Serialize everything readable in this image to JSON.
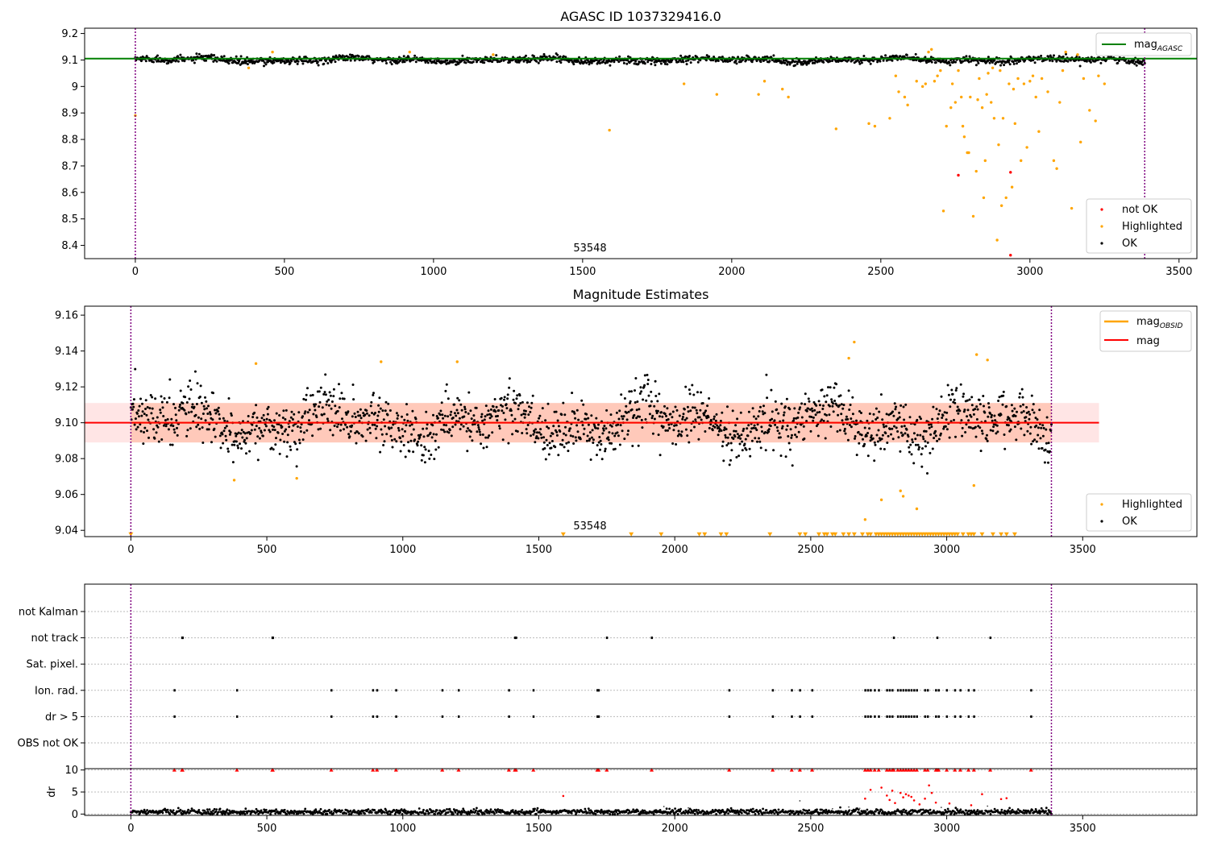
{
  "chart_data": [
    {
      "id": "agasc_panel",
      "type": "scatter",
      "title": "AGASC ID 1037329416.0",
      "xlim": [
        -170,
        3560
      ],
      "ylim": [
        8.35,
        9.22
      ],
      "xticks": [
        0,
        500,
        1000,
        1500,
        2000,
        2500,
        3000,
        3500
      ],
      "yticks": [
        8.4,
        8.5,
        8.6,
        8.7,
        8.8,
        8.9,
        9.0,
        9.1,
        9.2
      ],
      "obsid_label": "53548",
      "obsid_label_pos": [
        1695,
        8.37
      ],
      "boundaries": [
        0,
        3385
      ],
      "line": {
        "name": "mag",
        "name_sub": "AGASC",
        "y": 9.105,
        "x": [
          -170,
          3560
        ],
        "color": "#008000"
      },
      "ok_band": {
        "y_center": 9.1,
        "amplitude": 0.012,
        "x": [
          0,
          3385
        ],
        "count": 1500
      },
      "series": [
        {
          "name": "not OK",
          "color": "#ff0000",
          "points": [
            [
              2760,
              8.665
            ],
            [
              2935,
              8.676
            ],
            [
              2935,
              8.363
            ]
          ]
        },
        {
          "name": "Highlighted",
          "color": "#ffa500",
          "points": [
            [
              0,
              8.89
            ],
            [
              380,
              9.07
            ],
            [
              460,
              9.13
            ],
            [
              920,
              9.13
            ],
            [
              1200,
              9.12
            ],
            [
              1590,
              8.835
            ],
            [
              1840,
              9.01
            ],
            [
              1950,
              8.97
            ],
            [
              2090,
              8.97
            ],
            [
              2110,
              9.02
            ],
            [
              2170,
              8.99
            ],
            [
              2190,
              8.96
            ],
            [
              2350,
              8.84
            ],
            [
              2460,
              8.86
            ],
            [
              2480,
              8.85
            ],
            [
              2530,
              8.88
            ],
            [
              2550,
              9.04
            ],
            [
              2560,
              8.98
            ],
            [
              2580,
              8.96
            ],
            [
              2590,
              8.93
            ],
            [
              2620,
              9.02
            ],
            [
              2640,
              9.0
            ],
            [
              2650,
              9.01
            ],
            [
              2660,
              9.13
            ],
            [
              2670,
              9.14
            ],
            [
              2680,
              9.02
            ],
            [
              2690,
              9.04
            ],
            [
              2700,
              9.06
            ],
            [
              2710,
              8.53
            ],
            [
              2720,
              8.85
            ],
            [
              2740,
              9.01
            ],
            [
              2750,
              8.94
            ],
            [
              2760,
              9.06
            ],
            [
              2770,
              8.96
            ],
            [
              2780,
              8.81
            ],
            [
              2790,
              8.75
            ],
            [
              2800,
              8.96
            ],
            [
              2810,
              8.51
            ],
            [
              2820,
              8.68
            ],
            [
              2830,
              9.03
            ],
            [
              2840,
              8.92
            ],
            [
              2850,
              8.72
            ],
            [
              2860,
              9.05
            ],
            [
              2870,
              8.94
            ],
            [
              2880,
              8.88
            ],
            [
              2890,
              8.42
            ],
            [
              2900,
              9.06
            ],
            [
              2910,
              8.88
            ],
            [
              2920,
              8.58
            ],
            [
              2930,
              9.01
            ],
            [
              2940,
              8.62
            ],
            [
              2950,
              8.86
            ],
            [
              2960,
              9.03
            ],
            [
              2970,
              8.72
            ],
            [
              2980,
              9.01
            ],
            [
              2990,
              8.77
            ],
            [
              3000,
              9.02
            ],
            [
              3010,
              9.04
            ],
            [
              3020,
              8.96
            ],
            [
              3030,
              8.83
            ],
            [
              3040,
              9.03
            ],
            [
              3060,
              8.98
            ],
            [
              3080,
              8.72
            ],
            [
              3090,
              8.69
            ],
            [
              3100,
              8.94
            ],
            [
              3110,
              9.06
            ],
            [
              3120,
              9.13
            ],
            [
              3140,
              8.54
            ],
            [
              3160,
              9.12
            ],
            [
              3170,
              8.79
            ],
            [
              3180,
              9.03
            ],
            [
              3200,
              8.91
            ],
            [
              3220,
              8.87
            ],
            [
              3230,
              9.04
            ],
            [
              3250,
              9.01
            ],
            [
              2825,
              8.95
            ],
            [
              2855,
              8.97
            ],
            [
              2875,
              9.07
            ],
            [
              2895,
              8.78
            ],
            [
              2905,
              8.55
            ],
            [
              2945,
              8.99
            ],
            [
              2845,
              8.58
            ],
            [
              2795,
              8.75
            ],
            [
              2735,
              8.92
            ],
            [
              2775,
              8.85
            ]
          ]
        },
        {
          "name": "OK",
          "color": "#000000",
          "points": []
        }
      ],
      "legends": [
        {
          "position": "upper right",
          "entries": [
            {
              "label": "mag",
              "sub": "AGASC",
              "kind": "line",
              "color": "#008000"
            }
          ]
        },
        {
          "position": "lower right",
          "entries": [
            {
              "label": "not OK",
              "kind": "marker",
              "color": "#ff0000"
            },
            {
              "label": "Highlighted",
              "kind": "marker",
              "color": "#ffa500"
            },
            {
              "label": "OK",
              "kind": "marker",
              "color": "#000000"
            }
          ]
        }
      ]
    },
    {
      "id": "mag_panel",
      "type": "scatter",
      "title": "Magnitude Estimates",
      "xlim": [
        -170,
        3920
      ],
      "ylim": [
        9.0365,
        9.165
      ],
      "xticks": [
        0,
        500,
        1000,
        1500,
        2000,
        2500,
        3000,
        3500
      ],
      "yticks": [
        9.04,
        9.06,
        9.08,
        9.1,
        9.12,
        9.14,
        9.16
      ],
      "ytick_labels": [
        "9.04",
        "9.06",
        "9.08",
        "9.10",
        "9.12",
        "9.14",
        "9.16"
      ],
      "obsid_label": "53548",
      "obsid_label_pos": [
        1695,
        9.0375
      ],
      "boundaries": [
        0,
        3385
      ],
      "obsid_band": {
        "y_low": 9.089,
        "y_high": 9.111,
        "x": [
          0,
          3385
        ],
        "color": "#ffa07a",
        "alpha": 0.4
      },
      "mag_band": {
        "y_low": 9.089,
        "y_high": 9.111,
        "x": [
          -170,
          3560
        ],
        "color": "#ff9999",
        "alpha": 0.25
      },
      "lines": [
        {
          "name": "mag",
          "name_sub": "OBSID",
          "y": 9.1,
          "x": [
            0,
            3385
          ],
          "color": "#ffa500"
        },
        {
          "name": "mag",
          "y": 9.1,
          "x": [
            -170,
            3560
          ],
          "color": "#ff0000"
        }
      ],
      "ok_band": {
        "y_center": 9.1,
        "amplitude": 0.013,
        "x": [
          0,
          3385
        ],
        "count": 1700
      },
      "series": [
        {
          "name": "Highlighted",
          "color": "#ffa500",
          "points": [
            [
              380,
              9.068
            ],
            [
              460,
              9.133
            ],
            [
              610,
              9.069
            ],
            [
              920,
              9.134
            ],
            [
              1200,
              9.134
            ],
            [
              2660,
              9.145
            ],
            [
              2640,
              9.136
            ],
            [
              2700,
              9.046
            ],
            [
              2760,
              9.057
            ],
            [
              2830,
              9.062
            ],
            [
              2840,
              9.059
            ],
            [
              2890,
              9.052
            ],
            [
              3100,
              9.065
            ],
            [
              3110,
              9.138
            ],
            [
              3150,
              9.135
            ]
          ]
        },
        {
          "name": "OK",
          "color": "#000000",
          "points": []
        }
      ],
      "triangles_y": 9.0375,
      "triangles_x": [
        0,
        1590,
        1840,
        1950,
        2090,
        2110,
        2170,
        2190,
        2350,
        2460,
        2480,
        2530,
        2550,
        2560,
        2580,
        2590,
        2620,
        2640,
        2660,
        2690,
        2710,
        2720,
        2740,
        2750,
        2760,
        2770,
        2780,
        2790,
        2800,
        2810,
        2820,
        2830,
        2840,
        2850,
        2860,
        2870,
        2880,
        2890,
        2900,
        2910,
        2920,
        2930,
        2940,
        2950,
        2960,
        2970,
        2980,
        2990,
        3000,
        3010,
        3020,
        3030,
        3040,
        3060,
        3080,
        3090,
        3100,
        3130,
        3170,
        3200,
        3220,
        3250
      ],
      "legends": [
        {
          "position": "upper right",
          "entries": [
            {
              "label": "mag",
              "sub": "OBSID",
              "kind": "line",
              "color": "#ffa500"
            },
            {
              "label": "mag",
              "kind": "line",
              "color": "#ff0000"
            }
          ]
        },
        {
          "position": "lower right",
          "entries": [
            {
              "label": "Highlighted",
              "kind": "marker",
              "color": "#ffa500"
            },
            {
              "label": "OK",
              "kind": "marker",
              "color": "#000000"
            }
          ]
        }
      ]
    },
    {
      "id": "flags_panel",
      "type": "scatter",
      "title": "",
      "xlim": [
        -170,
        3920
      ],
      "boundaries": [
        0,
        3385
      ],
      "rows": [
        {
          "label": "not Kalman",
          "points": []
        },
        {
          "label": "not track",
          "points": [
            188,
            190,
            520,
            522,
            1412,
            1416,
            1750,
            1915,
            2805,
            2965,
            3160
          ]
        },
        {
          "label": "Sat. pixel.",
          "points": []
        },
        {
          "label": "Ion. rad.",
          "points": [
            160,
            390,
            737,
            890,
            905,
            975,
            1145,
            1205,
            1390,
            1480,
            1715,
            1720,
            2200,
            2360,
            2430,
            2460,
            2505,
            2700,
            2710,
            2720,
            2735,
            2750,
            2780,
            2790,
            2800,
            2820,
            2830,
            2840,
            2850,
            2860,
            2870,
            2880,
            2890,
            2920,
            2930,
            2960,
            2970,
            3000,
            3030,
            3050,
            3080,
            3100,
            3310
          ]
        },
        {
          "label": "dr > 5",
          "points": [
            160,
            390,
            737,
            890,
            905,
            975,
            1145,
            1205,
            1390,
            1480,
            1715,
            1720,
            2200,
            2360,
            2430,
            2460,
            2505,
            2700,
            2710,
            2720,
            2735,
            2750,
            2780,
            2790,
            2800,
            2820,
            2830,
            2840,
            2850,
            2860,
            2870,
            2880,
            2890,
            2920,
            2930,
            2960,
            2970,
            3000,
            3030,
            3050,
            3080,
            3100,
            3310
          ]
        },
        {
          "label": "OBS not OK",
          "points": []
        }
      ]
    },
    {
      "id": "dr_panel",
      "type": "scatter",
      "ylabel": "dr",
      "xlim": [
        -170,
        3920
      ],
      "ylim": [
        -0.3,
        10.3
      ],
      "xticks": [
        0,
        500,
        1000,
        1500,
        2000,
        2500,
        3000,
        3500
      ],
      "yticks": [
        0,
        5,
        10
      ],
      "boundaries": [
        0,
        3385
      ],
      "ok_band": {
        "y_center": 0.5,
        "amplitude": 0.3,
        "x": [
          0,
          3385
        ],
        "count": 1300
      },
      "capped_y": 10,
      "capped_x": [
        160,
        188,
        190,
        390,
        520,
        522,
        737,
        890,
        905,
        975,
        1145,
        1205,
        1390,
        1412,
        1416,
        1480,
        1715,
        1720,
        1750,
        1915,
        2200,
        2360,
        2430,
        2460,
        2505,
        2700,
        2710,
        2720,
        2735,
        2750,
        2780,
        2790,
        2800,
        2805,
        2820,
        2830,
        2840,
        2850,
        2860,
        2870,
        2880,
        2890,
        2920,
        2930,
        2960,
        2965,
        2970,
        3000,
        3030,
        3050,
        3080,
        3100,
        3160,
        3310
      ],
      "red_points": [
        [
          1590,
          4.1
        ],
        [
          2700,
          3.5
        ],
        [
          2720,
          5.5
        ],
        [
          2760,
          6.0
        ],
        [
          2780,
          4.2
        ],
        [
          2790,
          3.2
        ],
        [
          2800,
          5.3
        ],
        [
          2810,
          2.5
        ],
        [
          2830,
          4.8
        ],
        [
          2840,
          3.8
        ],
        [
          2850,
          4.5
        ],
        [
          2860,
          4.2
        ],
        [
          2870,
          3.9
        ],
        [
          2880,
          3.1
        ],
        [
          2900,
          2.2
        ],
        [
          2920,
          3.5
        ],
        [
          2935,
          6.5
        ],
        [
          2945,
          4.8
        ],
        [
          2960,
          2.6
        ],
        [
          3010,
          2.4
        ],
        [
          3090,
          2.0
        ],
        [
          3130,
          4.5
        ],
        [
          3200,
          3.4
        ],
        [
          3220,
          3.6
        ]
      ],
      "gray_points": [
        [
          1960,
          1.7
        ],
        [
          2050,
          1.4
        ],
        [
          2460,
          3.0
        ],
        [
          2580,
          1.2
        ],
        [
          2640,
          1.6
        ],
        [
          2680,
          1.3
        ],
        [
          2980,
          1.5
        ],
        [
          3040,
          1.2
        ],
        [
          3150,
          1.8
        ]
      ]
    }
  ]
}
